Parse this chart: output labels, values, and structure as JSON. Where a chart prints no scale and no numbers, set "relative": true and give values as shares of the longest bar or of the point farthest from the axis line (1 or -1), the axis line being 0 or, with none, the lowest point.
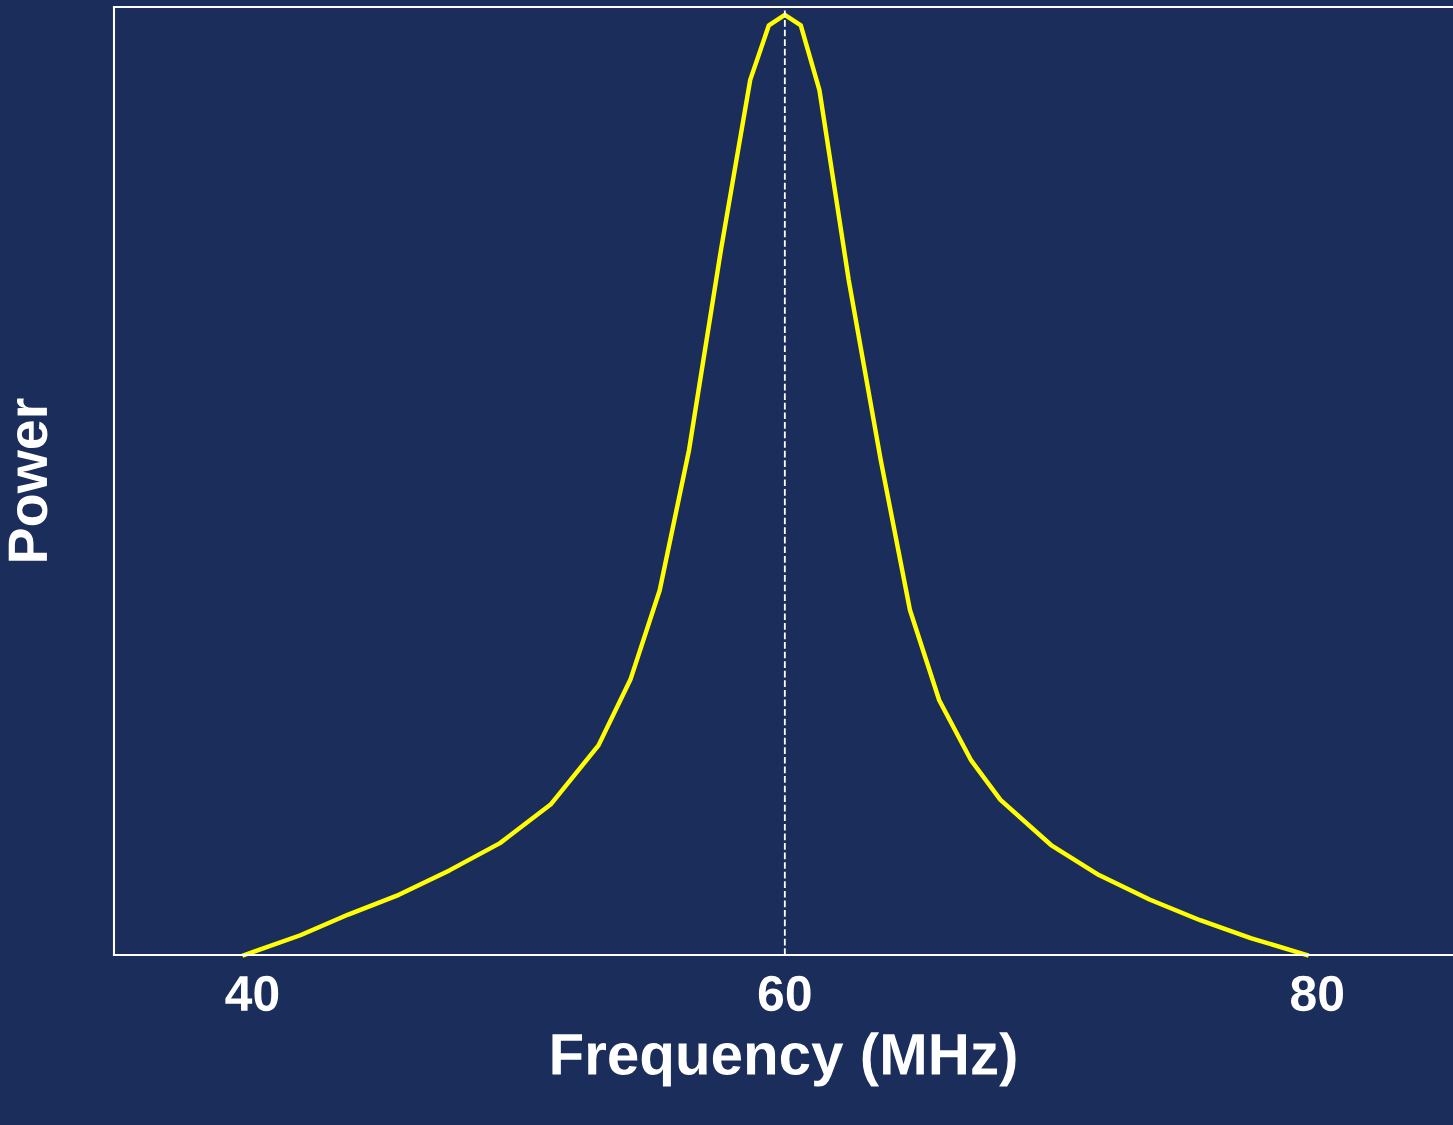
{
  "chart_data": {
    "type": "line",
    "xlabel": "Frequency (MHz)",
    "ylabel": "Power",
    "relative": true,
    "xlim": [
      34.8,
      85.1
    ],
    "xticks": [
      40,
      60,
      80
    ],
    "grid": false,
    "legend": false,
    "marker": "none",
    "line_style": "solid",
    "x": [
      39.7,
      41.8,
      43.6,
      45.5,
      47.4,
      49.3,
      51.2,
      53.0,
      54.2,
      55.3,
      56.4,
      57.6,
      58.7,
      59.4,
      60.0,
      60.6,
      61.3,
      62.4,
      63.6,
      64.7,
      65.8,
      67.0,
      68.1,
      70.0,
      71.8,
      73.7,
      75.6,
      77.5,
      79.6
    ],
    "series": [
      {
        "color": "#ffff00",
        "values": [
          0,
          0.021,
          0.043,
          0.064,
          0.09,
          0.119,
          0.16,
          0.223,
          0.293,
          0.388,
          0.537,
          0.75,
          0.931,
          0.989,
          1,
          0.989,
          0.92,
          0.718,
          0.527,
          0.367,
          0.271,
          0.207,
          0.165,
          0.117,
          0.085,
          0.059,
          0.037,
          0.018,
          0
        ]
      }
    ],
    "ref_lines": [
      {
        "axis": "x",
        "value": 60,
        "color": "#ffffff",
        "line_style": "dashed"
      }
    ]
  }
}
